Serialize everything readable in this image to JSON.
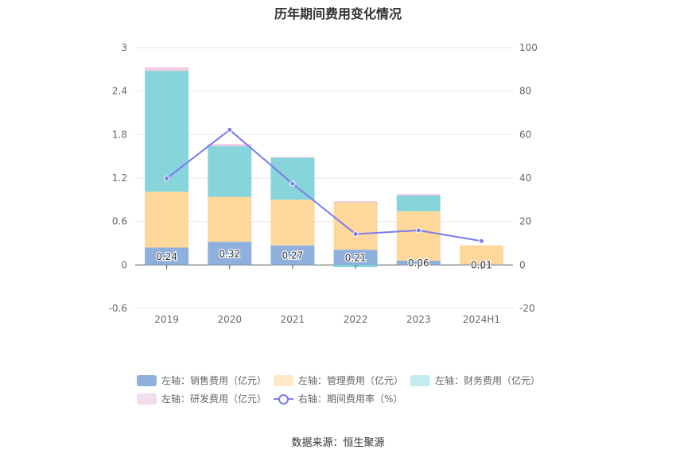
{
  "chart_data": {
    "type": "bar",
    "title": "历年期间费用变化情况",
    "categories": [
      "2019",
      "2020",
      "2021",
      "2022",
      "2023",
      "2024H1"
    ],
    "y_left": {
      "ylim": [
        -0.6,
        3
      ],
      "ticks": [
        "3",
        "2.4",
        "1.8",
        "1.2",
        "0.6",
        "0",
        "-0.6"
      ]
    },
    "y_right": {
      "ylim": [
        -20,
        100
      ],
      "ticks": [
        "100",
        "80",
        "60",
        "40",
        "20",
        "0",
        "-20"
      ]
    },
    "series": [
      {
        "name": "左轴：销售费用（亿元）",
        "axis": "left",
        "kind": "bar",
        "color": "#8fb0dd",
        "values": [
          0.24,
          0.32,
          0.27,
          0.21,
          0.06,
          0.01
        ],
        "labels": [
          "0.24",
          "0.32",
          "0.27",
          "0.21",
          "0.06",
          "0.01"
        ]
      },
      {
        "name": "左轴：管理费用（亿元）",
        "axis": "left",
        "kind": "bar",
        "color": "#fdd89a",
        "values": [
          0.77,
          0.62,
          0.63,
          0.65,
          0.68,
          0.26
        ]
      },
      {
        "name": "左轴：财务费用（亿元）",
        "axis": "left",
        "kind": "bar",
        "color": "#87d5da",
        "values": [
          1.67,
          0.7,
          0.58,
          -0.03,
          0.22,
          0.0
        ]
      },
      {
        "name": "左轴：研发费用（亿元）",
        "axis": "left",
        "kind": "bar",
        "color": "#f0cbe3",
        "values": [
          0.05,
          0.03,
          0.01,
          0.02,
          0.02,
          0.0
        ]
      },
      {
        "name": "右轴：期间费用率（%）",
        "axis": "right",
        "kind": "line",
        "color": "#7b7bee",
        "values": [
          39.8,
          62.2,
          37.4,
          14.2,
          15.9,
          11.0
        ]
      }
    ],
    "legend_position": "bottom",
    "grid": true
  },
  "legend": {
    "items": [
      {
        "label": "左轴：销售费用（亿元）",
        "color": "#8fb0dd"
      },
      {
        "label": "左轴：管理费用（亿元）",
        "color": "#ffe9c6"
      },
      {
        "label": "左轴：财务费用（亿元）",
        "color": "#c4ebed"
      },
      {
        "label": "左轴：研发费用（亿元）",
        "color": "#f3dcec"
      },
      {
        "label": "右轴：期间费用率（%）",
        "color": "#7b7bee"
      }
    ]
  },
  "source": "数据来源：恒生聚源"
}
